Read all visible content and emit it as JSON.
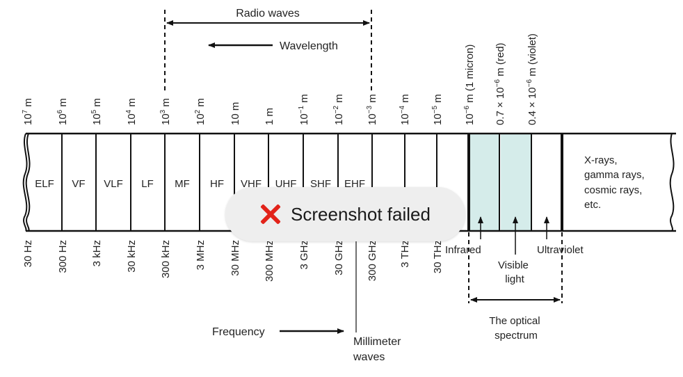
{
  "diagram": {
    "radio_waves_label": "Radio waves",
    "wavelength_label": "Wavelength",
    "frequency_label": "Frequency",
    "millimeter_label": [
      "Millimeter",
      "waves"
    ],
    "optical_label": [
      "The optical",
      "spectrum"
    ],
    "infrared_label": "Infrared",
    "visible_label": [
      "Visible",
      "light"
    ],
    "ultraviolet_label": "Ultraviolet",
    "xray_label": [
      "X-rays,",
      "gamma rays,",
      "cosmic rays,",
      "etc."
    ],
    "bands": [
      "ELF",
      "VF",
      "VLF",
      "LF",
      "MF",
      "HF",
      "VHF",
      "UHF",
      "SHF",
      "EHF"
    ],
    "wavelengths": [
      {
        "base": "10",
        "exp": "7",
        "unit": " m"
      },
      {
        "base": "10",
        "exp": "6",
        "unit": " m"
      },
      {
        "base": "10",
        "exp": "5",
        "unit": " m"
      },
      {
        "base": "10",
        "exp": "4",
        "unit": " m"
      },
      {
        "base": "10",
        "exp": "3",
        "unit": " m"
      },
      {
        "base": "10",
        "exp": "2",
        "unit": " m"
      },
      {
        "base": "10 m",
        "exp": "",
        "unit": ""
      },
      {
        "base": "1 m",
        "exp": "",
        "unit": ""
      },
      {
        "base": "10",
        "exp": "−1",
        "unit": " m"
      },
      {
        "base": "10",
        "exp": "−2",
        "unit": " m"
      },
      {
        "base": "10",
        "exp": "−3",
        "unit": " m"
      },
      {
        "base": "10",
        "exp": "−4",
        "unit": " m"
      },
      {
        "base": "10",
        "exp": "−5",
        "unit": " m"
      },
      {
        "base": "10",
        "exp": "−6",
        "unit": " m (1 micron)"
      },
      {
        "base": "0.7 × 10",
        "exp": "−6",
        "unit": " m (red)"
      },
      {
        "base": "0.4 × 10",
        "exp": "−6",
        "unit": " m (violet)"
      }
    ],
    "frequencies": [
      "30 Hz",
      "300 Hz",
      "3 kHz",
      "30 kHz",
      "300 kHz",
      "3 MHz",
      "30 MHz",
      "300 MHz",
      "3 GHz",
      "30 GHz",
      "300 GHz",
      "3 THz",
      "30 THz"
    ],
    "colors": {
      "visible_fill": "#d5ecea",
      "line": "#111111"
    }
  },
  "toast": {
    "icon": "error-x-icon",
    "text": "Screenshot failed"
  }
}
